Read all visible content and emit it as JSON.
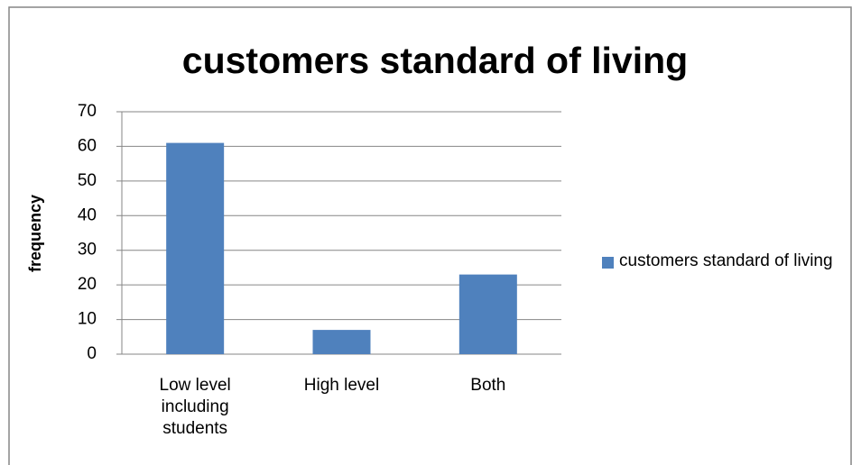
{
  "chart_data": {
    "type": "bar",
    "title": "customers standard of living",
    "y_label": "frequency",
    "categories": [
      "Low level including students",
      "High level",
      "Both"
    ],
    "series": [
      {
        "name": "customers standard of living",
        "color": "#4f81bd",
        "values": [
          61,
          7,
          23
        ]
      }
    ],
    "ylim": [
      0,
      70
    ],
    "yticks": [
      0,
      10,
      20,
      30,
      40,
      50,
      60,
      70
    ],
    "grid": true,
    "legend": "right"
  }
}
